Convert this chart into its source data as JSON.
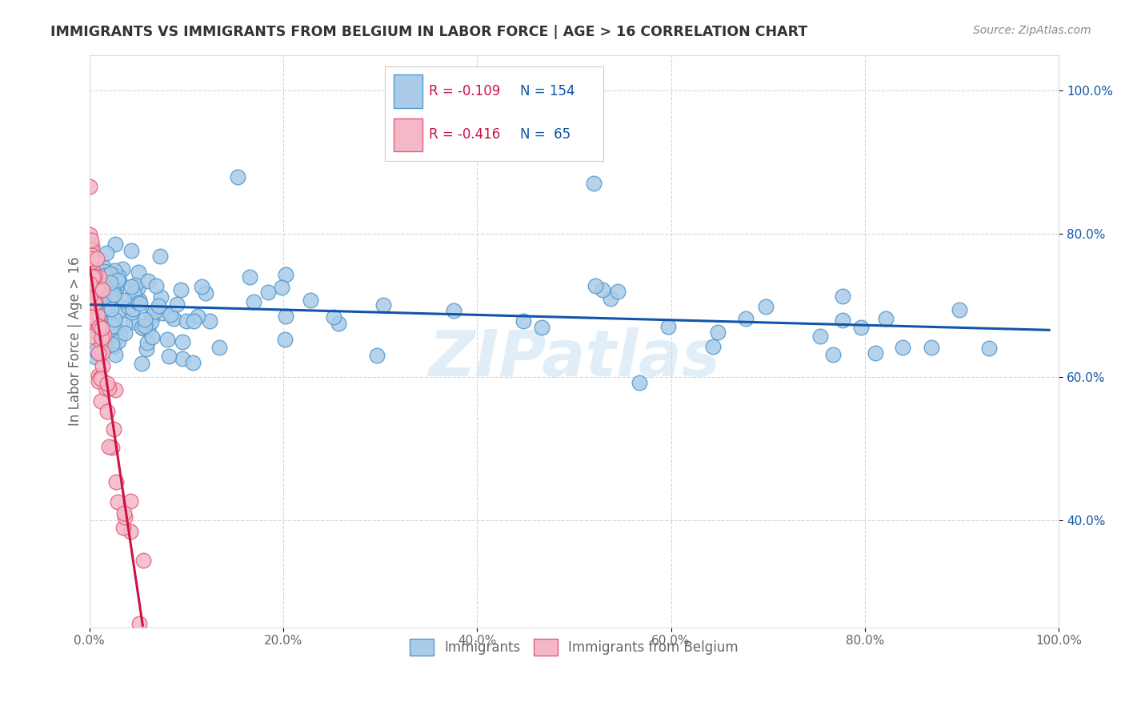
{
  "title": "IMMIGRANTS VS IMMIGRANTS FROM BELGIUM IN LABOR FORCE | AGE > 16 CORRELATION CHART",
  "source": "Source: ZipAtlas.com",
  "ylabel": "In Labor Force | Age > 16",
  "xlim": [
    0.0,
    1.0
  ],
  "ylim": [
    0.25,
    1.05
  ],
  "xticks": [
    0.0,
    0.2,
    0.4,
    0.6,
    0.8,
    1.0
  ],
  "xtick_labels": [
    "0.0%",
    "20.0%",
    "40.0%",
    "60.0%",
    "80.0%",
    "100.0%"
  ],
  "yticks": [
    0.4,
    0.6,
    0.8,
    1.0
  ],
  "ytick_labels": [
    "40.0%",
    "60.0%",
    "80.0%",
    "100.0%"
  ],
  "blue_color": "#aacce8",
  "pink_color": "#f4b8c8",
  "blue_edge": "#5599cc",
  "pink_edge": "#e0607a",
  "trend_blue": "#1155aa",
  "trend_pink": "#cc1144",
  "R_blue": -0.109,
  "N_blue": 154,
  "R_pink": -0.416,
  "N_pink": 65,
  "legend_text_color": "#cc1144",
  "legend_N_color": "#1155aa",
  "background_color": "#ffffff",
  "grid_color": "#cccccc",
  "title_color": "#333333",
  "axis_label_color": "#666666",
  "ytick_color": "#1155aa",
  "xtick_color": "#666666",
  "watermark": "ZIPatlas",
  "watermark_color": "#c5dff0"
}
